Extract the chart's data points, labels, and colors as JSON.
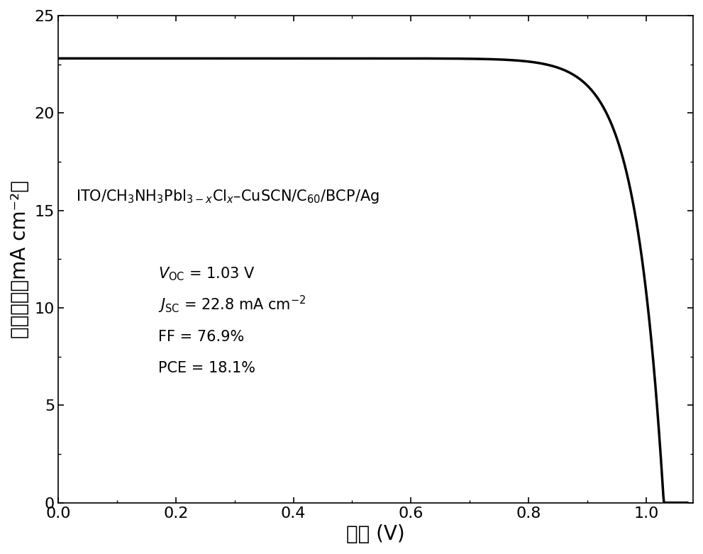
{
  "Voc": 1.03,
  "Jsc": 22.8,
  "FF": 76.9,
  "PCE": 18.1,
  "xlim": [
    0.0,
    1.08
  ],
  "ylim": [
    0.0,
    25
  ],
  "xticks": [
    0.0,
    0.2,
    0.4,
    0.6,
    0.8,
    1.0
  ],
  "yticks": [
    0,
    5,
    10,
    15,
    20,
    25
  ],
  "xlabel": "电压 (V)",
  "ylabel": "电流密度（mA cm⁻²）",
  "line_color": "#000000",
  "line_width": 2.5,
  "background_color": "#ffffff",
  "annotation_device": "ITO/CH₃NH₃PbI₃₋ₓClₓ–CuSCN/C₆₀/BCP/Ag",
  "fig_width": 9.91,
  "fig_height": 7.81,
  "dpi": 100
}
